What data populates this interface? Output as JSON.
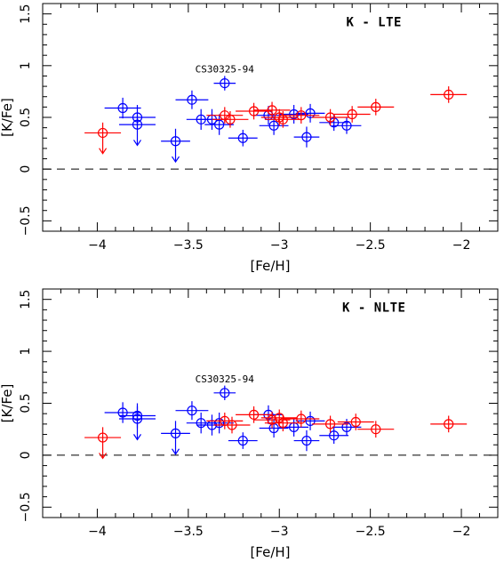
{
  "colors": {
    "blue": "#0000ff",
    "red": "#ff0000"
  },
  "chart_data": [
    {
      "type": "scatter",
      "label": "K - LTE",
      "annotation": "CS30325-94",
      "annotation_at": [
        -3.3,
        0.83
      ],
      "xlabel": "[Fe/H]",
      "ylabel": "[K/Fe]",
      "xlim": [
        -4.3,
        -1.8
      ],
      "ylim": [
        -0.6,
        1.6
      ],
      "xticks": [
        "−4",
        "−3.5",
        "−3",
        "−2.5",
        "−2"
      ],
      "yticks": [
        "−0.5",
        "0",
        "0.5",
        "1",
        "1.5"
      ],
      "zero_line": true,
      "series": [
        {
          "color": "blue",
          "points": [
            {
              "x": -3.86,
              "y": 0.59,
              "ex": 0.1,
              "ey": 0.1
            },
            {
              "x": -3.78,
              "y": 0.5,
              "ex": 0.1,
              "ey": 0.12
            },
            {
              "x": -3.78,
              "y": 0.43,
              "ex": 0.1,
              "ey": 0.12,
              "upper": true
            },
            {
              "x": -3.57,
              "y": 0.27,
              "ex": 0.08,
              "ey": 0.12,
              "upper": true
            },
            {
              "x": -3.48,
              "y": 0.67,
              "ex": 0.09,
              "ey": 0.09
            },
            {
              "x": -3.43,
              "y": 0.48,
              "ex": 0.08,
              "ey": 0.1
            },
            {
              "x": -3.37,
              "y": 0.48,
              "ex": 0.08,
              "ey": 0.1
            },
            {
              "x": -3.33,
              "y": 0.43,
              "ex": 0.08,
              "ey": 0.1
            },
            {
              "x": -3.3,
              "y": 0.83,
              "ex": 0.06,
              "ey": 0.07
            },
            {
              "x": -3.2,
              "y": 0.3,
              "ex": 0.08,
              "ey": 0.08
            },
            {
              "x": -3.06,
              "y": 0.52,
              "ex": 0.08,
              "ey": 0.09
            },
            {
              "x": -3.03,
              "y": 0.42,
              "ex": 0.08,
              "ey": 0.09
            },
            {
              "x": -2.92,
              "y": 0.53,
              "ex": 0.08,
              "ey": 0.09
            },
            {
              "x": -2.85,
              "y": 0.31,
              "ex": 0.07,
              "ey": 0.1
            },
            {
              "x": -2.83,
              "y": 0.54,
              "ex": 0.08,
              "ey": 0.09
            },
            {
              "x": -2.7,
              "y": 0.45,
              "ex": 0.08,
              "ey": 0.08
            },
            {
              "x": -2.63,
              "y": 0.42,
              "ex": 0.08,
              "ey": 0.08
            }
          ]
        },
        {
          "color": "red",
          "points": [
            {
              "x": -3.97,
              "y": 0.35,
              "ex": 0.1,
              "ey": 0.1,
              "upper": true
            },
            {
              "x": -3.3,
              "y": 0.52,
              "ex": 0.1,
              "ey": 0.08
            },
            {
              "x": -3.27,
              "y": 0.48,
              "ex": 0.1,
              "ey": 0.08
            },
            {
              "x": -3.14,
              "y": 0.56,
              "ex": 0.1,
              "ey": 0.08
            },
            {
              "x": -3.04,
              "y": 0.57,
              "ex": 0.1,
              "ey": 0.08
            },
            {
              "x": -3.0,
              "y": 0.5,
              "ex": 0.1,
              "ey": 0.08
            },
            {
              "x": -2.98,
              "y": 0.48,
              "ex": 0.1,
              "ey": 0.08
            },
            {
              "x": -2.88,
              "y": 0.52,
              "ex": 0.1,
              "ey": 0.08
            },
            {
              "x": -2.72,
              "y": 0.5,
              "ex": 0.1,
              "ey": 0.08
            },
            {
              "x": -2.6,
              "y": 0.53,
              "ex": 0.1,
              "ey": 0.08
            },
            {
              "x": -2.47,
              "y": 0.6,
              "ex": 0.1,
              "ey": 0.08
            },
            {
              "x": -2.07,
              "y": 0.72,
              "ex": 0.1,
              "ey": 0.08
            }
          ]
        }
      ]
    },
    {
      "type": "scatter",
      "label": "K - NLTE",
      "annotation": "CS30325-94",
      "annotation_at": [
        -3.3,
        0.6
      ],
      "xlabel": "[Fe/H]",
      "ylabel": "[K/Fe]",
      "xlim": [
        -4.3,
        -1.8
      ],
      "ylim": [
        -0.6,
        1.6
      ],
      "xticks": [
        "−4",
        "−3.5",
        "−3",
        "−2.5",
        "−2"
      ],
      "yticks": [
        "−0.5",
        "0",
        "0.5",
        "1",
        "1.5"
      ],
      "zero_line": true,
      "series": [
        {
          "color": "blue",
          "points": [
            {
              "x": -3.86,
              "y": 0.41,
              "ex": 0.1,
              "ey": 0.1
            },
            {
              "x": -3.78,
              "y": 0.38,
              "ex": 0.1,
              "ey": 0.12
            },
            {
              "x": -3.78,
              "y": 0.35,
              "ex": 0.1,
              "ey": 0.12,
              "upper": true
            },
            {
              "x": -3.57,
              "y": 0.21,
              "ex": 0.08,
              "ey": 0.12,
              "upper": true
            },
            {
              "x": -3.48,
              "y": 0.43,
              "ex": 0.09,
              "ey": 0.09
            },
            {
              "x": -3.43,
              "y": 0.31,
              "ex": 0.08,
              "ey": 0.1
            },
            {
              "x": -3.37,
              "y": 0.29,
              "ex": 0.08,
              "ey": 0.1
            },
            {
              "x": -3.33,
              "y": 0.31,
              "ex": 0.08,
              "ey": 0.1
            },
            {
              "x": -3.3,
              "y": 0.6,
              "ex": 0.06,
              "ey": 0.07
            },
            {
              "x": -3.2,
              "y": 0.14,
              "ex": 0.08,
              "ey": 0.08
            },
            {
              "x": -3.06,
              "y": 0.39,
              "ex": 0.08,
              "ey": 0.09
            },
            {
              "x": -3.03,
              "y": 0.26,
              "ex": 0.08,
              "ey": 0.09
            },
            {
              "x": -2.92,
              "y": 0.27,
              "ex": 0.08,
              "ey": 0.09
            },
            {
              "x": -2.85,
              "y": 0.14,
              "ex": 0.07,
              "ey": 0.1
            },
            {
              "x": -2.83,
              "y": 0.33,
              "ex": 0.08,
              "ey": 0.09
            },
            {
              "x": -2.7,
              "y": 0.19,
              "ex": 0.08,
              "ey": 0.08
            },
            {
              "x": -2.63,
              "y": 0.27,
              "ex": 0.08,
              "ey": 0.08
            }
          ]
        },
        {
          "color": "red",
          "points": [
            {
              "x": -3.97,
              "y": 0.17,
              "ex": 0.1,
              "ey": 0.1,
              "upper": true
            },
            {
              "x": -3.3,
              "y": 0.33,
              "ex": 0.1,
              "ey": 0.08
            },
            {
              "x": -3.26,
              "y": 0.29,
              "ex": 0.1,
              "ey": 0.08
            },
            {
              "x": -3.14,
              "y": 0.39,
              "ex": 0.1,
              "ey": 0.08
            },
            {
              "x": -3.04,
              "y": 0.34,
              "ex": 0.1,
              "ey": 0.08
            },
            {
              "x": -3.0,
              "y": 0.36,
              "ex": 0.1,
              "ey": 0.08
            },
            {
              "x": -2.98,
              "y": 0.31,
              "ex": 0.1,
              "ey": 0.08
            },
            {
              "x": -2.88,
              "y": 0.35,
              "ex": 0.1,
              "ey": 0.08
            },
            {
              "x": -2.72,
              "y": 0.3,
              "ex": 0.1,
              "ey": 0.08
            },
            {
              "x": -2.58,
              "y": 0.32,
              "ex": 0.1,
              "ey": 0.08
            },
            {
              "x": -2.47,
              "y": 0.25,
              "ex": 0.1,
              "ey": 0.08
            },
            {
              "x": -2.07,
              "y": 0.3,
              "ex": 0.1,
              "ey": 0.08
            }
          ]
        }
      ]
    }
  ]
}
